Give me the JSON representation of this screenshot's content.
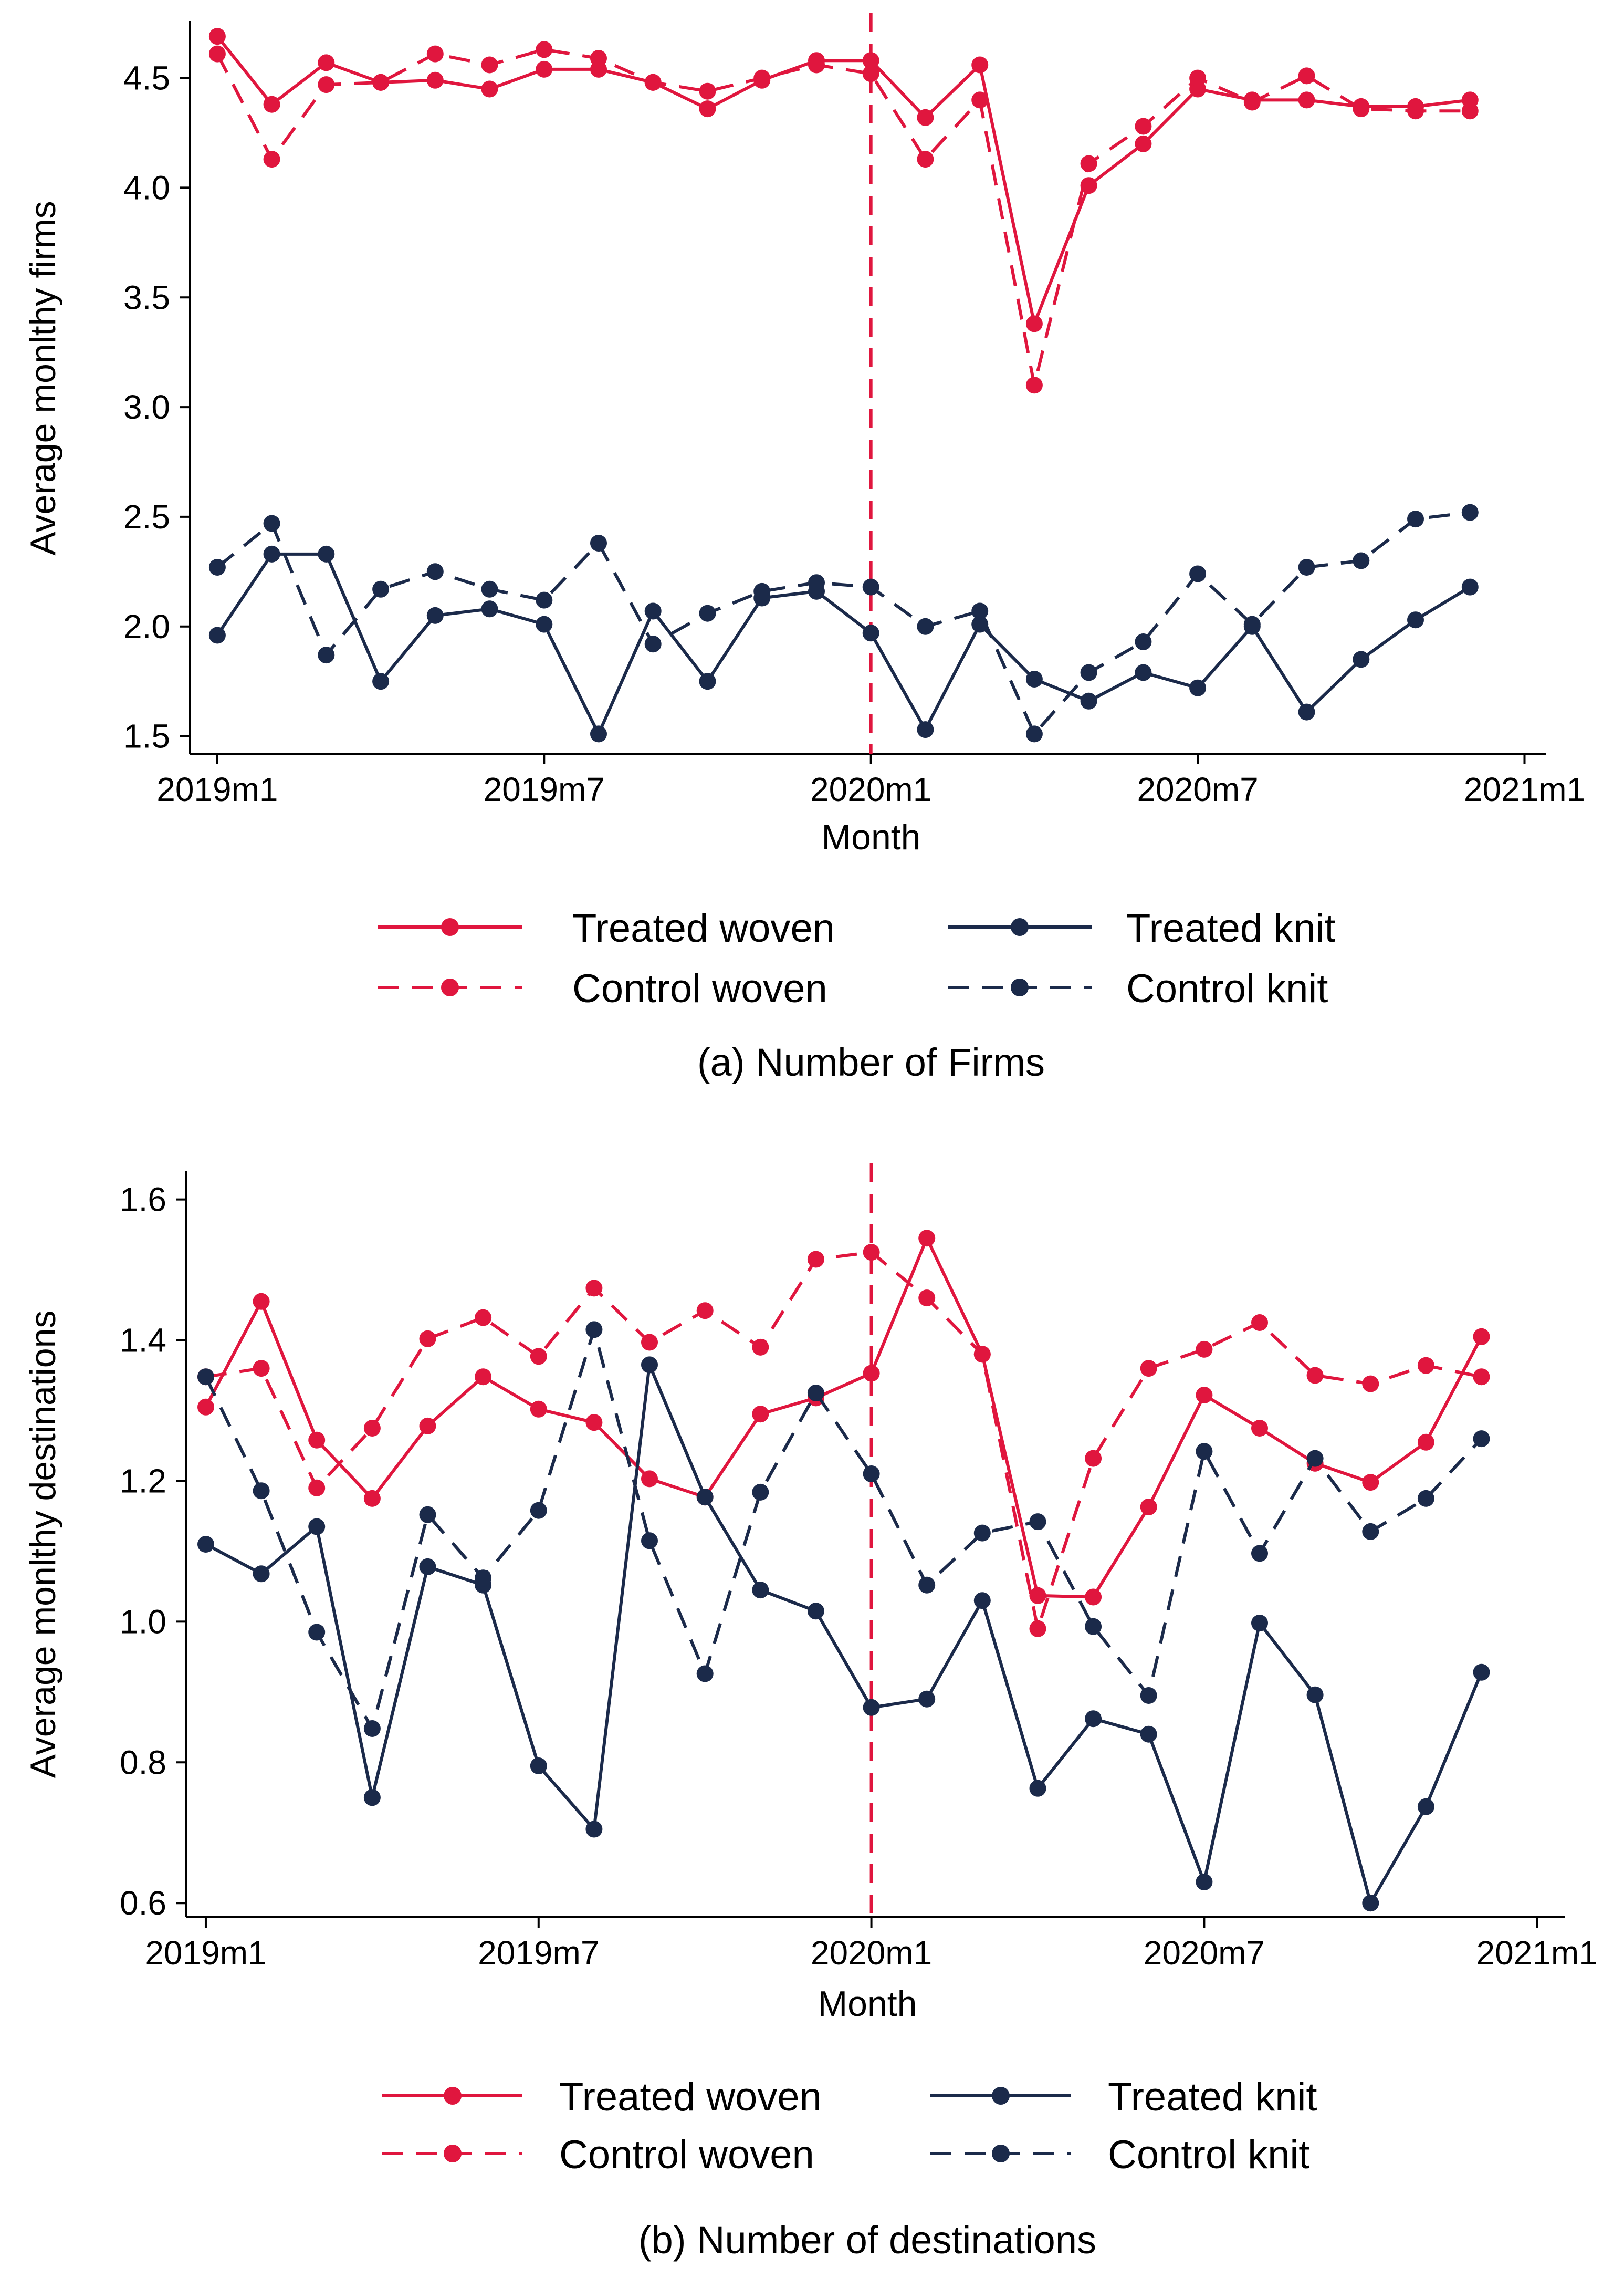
{
  "colors": {
    "woven": "#E0163E",
    "knit": "#1B2A4A",
    "axis": "#000000",
    "event_line": "#E0163E"
  },
  "chart_data": [
    {
      "type": "line",
      "title": "",
      "caption": "(a) Number of Firms",
      "xlabel": "Month",
      "ylabel": "Average monlthy firms",
      "ylim": [
        1.42,
        4.76
      ],
      "yticks": [
        1.5,
        2.0,
        2.5,
        3.0,
        3.5,
        4.0,
        4.5
      ],
      "ytick_labels": [
        "1.5",
        "2.0",
        "2.5",
        "3.0",
        "3.5",
        "4.0",
        "4.5"
      ],
      "xlim": [
        -0.5,
        24.4
      ],
      "xticks": [
        0,
        6,
        12,
        18,
        24
      ],
      "xtick_labels": [
        "2019m1",
        "2019m7",
        "2020m1",
        "2020m7",
        "2021m1"
      ],
      "event_x": 12,
      "x": [
        0,
        1,
        2,
        3,
        4,
        5,
        6,
        7,
        8,
        9,
        10,
        11,
        12,
        13,
        14,
        15,
        16,
        17,
        18,
        19,
        20,
        21,
        22,
        23
      ],
      "series": [
        {
          "name": "Treated woven",
          "style": "solid",
          "color": "woven",
          "values": [
            4.69,
            4.38,
            4.57,
            4.48,
            4.49,
            4.45,
            4.54,
            4.54,
            4.48,
            4.36,
            4.49,
            4.58,
            4.58,
            4.32,
            4.56,
            3.38,
            4.01,
            4.2,
            4.45,
            4.4,
            4.4,
            4.37,
            4.37,
            4.4
          ]
        },
        {
          "name": "Control woven",
          "style": "dashed",
          "color": "woven",
          "values": [
            4.61,
            4.13,
            4.47,
            4.48,
            4.61,
            4.56,
            4.63,
            4.59,
            4.48,
            4.44,
            4.5,
            4.56,
            4.52,
            4.13,
            4.4,
            3.1,
            4.11,
            4.28,
            4.5,
            4.39,
            4.51,
            4.36,
            4.35,
            4.35
          ]
        },
        {
          "name": "Treated knit",
          "style": "solid",
          "color": "knit",
          "values": [
            1.96,
            2.33,
            2.33,
            1.75,
            2.05,
            2.08,
            2.01,
            1.51,
            2.07,
            1.75,
            2.13,
            2.16,
            1.97,
            1.53,
            2.01,
            1.76,
            1.66,
            1.79,
            1.72,
            2.0,
            1.61,
            1.85,
            2.03,
            2.18
          ]
        },
        {
          "name": "Control knit",
          "style": "dashed",
          "color": "knit",
          "values": [
            2.27,
            2.47,
            1.87,
            2.17,
            2.25,
            2.17,
            2.12,
            2.38,
            1.92,
            2.06,
            2.16,
            2.2,
            2.18,
            2.0,
            2.07,
            1.51,
            1.79,
            1.93,
            2.24,
            2.01,
            2.27,
            2.3,
            2.49,
            2.52
          ]
        }
      ],
      "legend": {
        "position": "bottom",
        "items": [
          {
            "label": "Treated woven",
            "series": 0
          },
          {
            "label": "Treated knit",
            "series": 2
          },
          {
            "label": "Control woven",
            "series": 1
          },
          {
            "label": "Control knit",
            "series": 3
          }
        ]
      }
    },
    {
      "type": "line",
      "title": "",
      "caption": "(b) Number of destinations",
      "xlabel": "Month",
      "ylabel": "Average monlthy destinations",
      "ylim": [
        0.58,
        1.64
      ],
      "yticks": [
        0.6,
        0.8,
        1.0,
        1.2,
        1.4,
        1.6
      ],
      "ytick_labels": [
        "0.6",
        "0.8",
        "1.0",
        "1.2",
        "1.4",
        "1.6"
      ],
      "xlim": [
        -0.35,
        24.5
      ],
      "xticks": [
        0,
        6,
        12,
        18,
        24
      ],
      "xtick_labels": [
        "2019m1",
        "2019m7",
        "2020m1",
        "2020m7",
        "2021m1"
      ],
      "event_x": 12,
      "x": [
        0,
        1,
        2,
        3,
        4,
        5,
        6,
        7,
        8,
        9,
        10,
        11,
        12,
        13,
        14,
        15,
        16,
        17,
        18,
        19,
        20,
        21,
        22,
        23
      ],
      "series": [
        {
          "name": "Treated woven",
          "style": "solid",
          "color": "woven",
          "values": [
            1.305,
            1.455,
            1.258,
            1.175,
            1.278,
            1.348,
            1.302,
            1.283,
            1.203,
            1.177,
            1.295,
            1.318,
            1.353,
            1.545,
            1.38,
            1.037,
            1.035,
            1.163,
            1.322,
            1.275,
            1.225,
            1.198,
            1.255,
            1.405
          ]
        },
        {
          "name": "Control woven",
          "style": "dashed",
          "color": "woven",
          "values": [
            1.348,
            1.36,
            1.19,
            1.275,
            1.402,
            1.432,
            1.377,
            1.474,
            1.397,
            1.442,
            1.39,
            1.515,
            1.525,
            1.46,
            1.38,
            0.99,
            1.232,
            1.36,
            1.387,
            1.425,
            1.35,
            1.338,
            1.364,
            1.348
          ]
        },
        {
          "name": "Treated knit",
          "style": "solid",
          "color": "knit",
          "values": [
            1.11,
            1.068,
            1.135,
            0.75,
            1.078,
            1.052,
            0.795,
            0.705,
            1.365,
            1.177,
            1.045,
            1.015,
            0.878,
            0.89,
            1.03,
            0.763,
            0.862,
            0.84,
            0.63,
            0.998,
            0.896,
            0.6,
            0.737,
            0.928
          ]
        },
        {
          "name": "Control knit",
          "style": "dashed",
          "color": "knit",
          "values": [
            1.348,
            1.186,
            0.985,
            0.848,
            1.152,
            1.062,
            1.158,
            1.415,
            1.115,
            0.926,
            1.184,
            1.325,
            1.21,
            1.052,
            1.126,
            1.142,
            0.993,
            0.895,
            1.242,
            1.097,
            1.232,
            1.128,
            1.175,
            1.26
          ]
        }
      ],
      "legend": {
        "position": "bottom",
        "items": [
          {
            "label": "Treated woven",
            "series": 0
          },
          {
            "label": "Treated knit",
            "series": 2
          },
          {
            "label": "Control woven",
            "series": 1
          },
          {
            "label": "Control knit",
            "series": 3
          }
        ]
      }
    }
  ]
}
